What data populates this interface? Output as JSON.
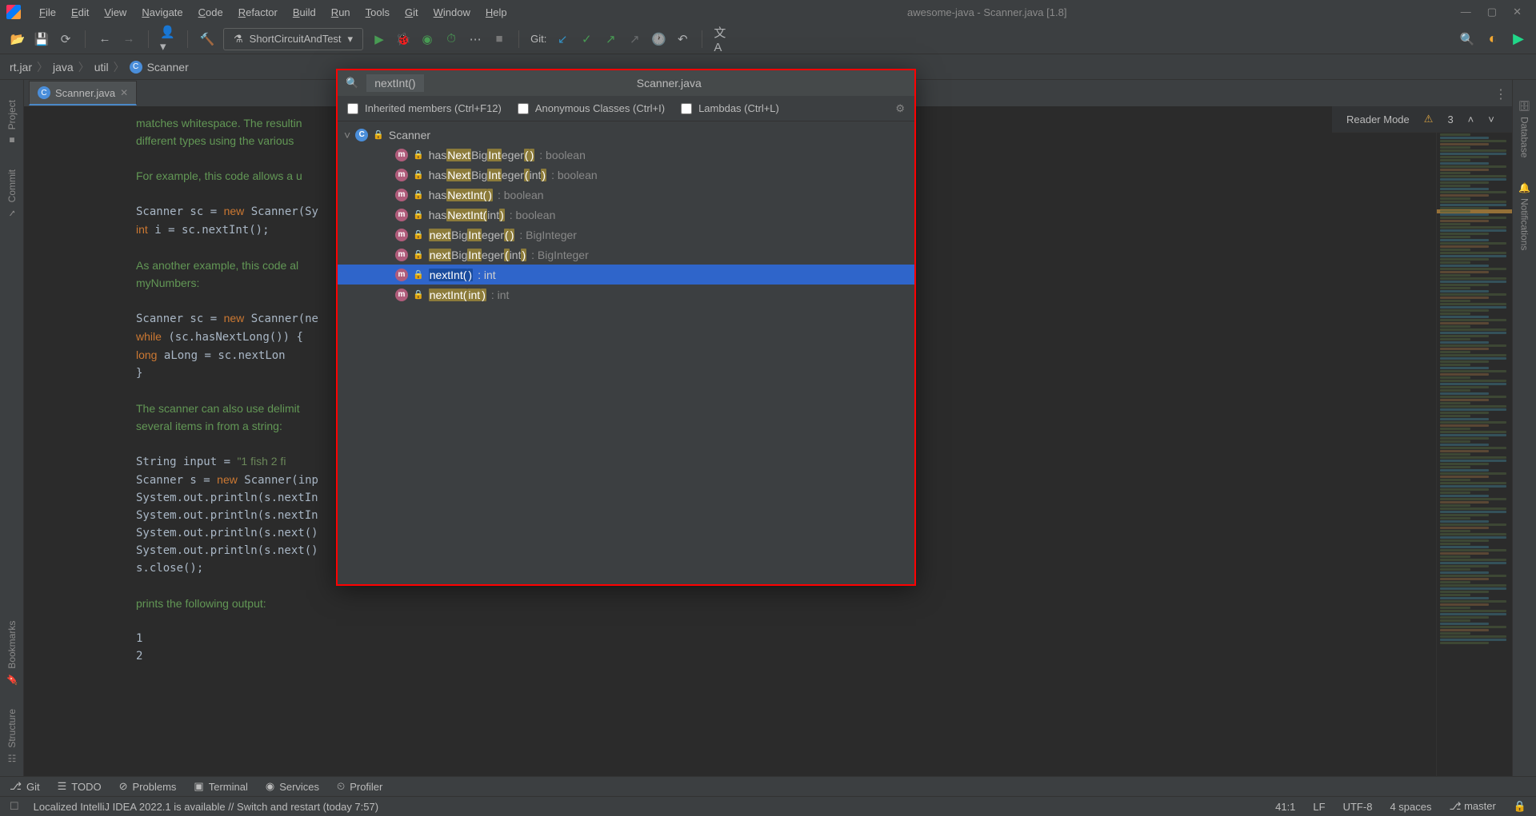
{
  "titlebar": {
    "menu": [
      "File",
      "Edit",
      "View",
      "Navigate",
      "Code",
      "Refactor",
      "Build",
      "Run",
      "Tools",
      "Git",
      "Window",
      "Help"
    ],
    "title": "awesome-java - Scanner.java [1.8]"
  },
  "toolbar": {
    "runConfig": "ShortCircuitAndTest",
    "gitLabel": "Git:"
  },
  "breadcrumb": {
    "items": [
      "rt.jar",
      "java",
      "util",
      "Scanner"
    ]
  },
  "tab": {
    "name": "Scanner.java"
  },
  "readerBar": {
    "label": "Reader Mode",
    "warnings": "3"
  },
  "editorLines": [
    {
      "cls": "doc-green",
      "text": "matches whitespace. The resultin"
    },
    {
      "cls": "doc-green",
      "text": "different types using the various"
    },
    {
      "cls": "",
      "text": ""
    },
    {
      "cls": "doc-green",
      "text": "For example, this code allows a u"
    },
    {
      "cls": "",
      "text": ""
    },
    {
      "cls": "code",
      "html": "Scanner sc = <span class='code-new'>new</span> Scanner(Sy"
    },
    {
      "cls": "code",
      "html": "<span class='code-kw'>int</span> i = sc.nextInt();"
    },
    {
      "cls": "",
      "text": ""
    },
    {
      "cls": "doc-green",
      "text": "As another example, this code al"
    },
    {
      "cls": "doc-green",
      "text": "myNumbers:"
    },
    {
      "cls": "",
      "text": ""
    },
    {
      "cls": "code",
      "html": "Scanner sc = <span class='code-new'>new</span> Scanner(ne"
    },
    {
      "cls": "code",
      "html": "<span class='code-kw'>while</span> (sc.hasNextLong()) {"
    },
    {
      "cls": "code",
      "html": "    <span class='code-kw'>long</span> aLong = sc.nextLon"
    },
    {
      "cls": "code",
      "html": "}"
    },
    {
      "cls": "",
      "text": ""
    },
    {
      "cls": "doc-green",
      "text": "The scanner can also use delimit"
    },
    {
      "cls": "doc-green",
      "text": "several items in from a string:"
    },
    {
      "cls": "",
      "text": ""
    },
    {
      "cls": "code",
      "html": "String input = <span class='code-str'>\"1 fish 2 fi</span>"
    },
    {
      "cls": "code",
      "html": "Scanner s = <span class='code-new'>new</span> Scanner(inp"
    },
    {
      "cls": "code",
      "html": "System.out.println(s.nextIn"
    },
    {
      "cls": "code",
      "html": "System.out.println(s.nextIn"
    },
    {
      "cls": "code",
      "html": "System.out.println(s.next()"
    },
    {
      "cls": "code",
      "html": "System.out.println(s.next()"
    },
    {
      "cls": "code",
      "html": "s.close();"
    },
    {
      "cls": "",
      "text": ""
    },
    {
      "cls": "doc-green",
      "text": "prints the following output:"
    },
    {
      "cls": "",
      "text": ""
    },
    {
      "cls": "code",
      "html": "1"
    },
    {
      "cls": "code",
      "html": "2"
    }
  ],
  "popup": {
    "query": "nextInt()",
    "title": "Scanner.java",
    "opts": {
      "inherited": "Inherited members (Ctrl+F12)",
      "anon": "Anonymous Classes (Ctrl+I)",
      "lambdas": "Lambdas (Ctrl+L)"
    },
    "root": "Scanner",
    "items": [
      {
        "selected": false,
        "parts": [
          "has",
          [
            "Next"
          ],
          "Big",
          [
            "Int"
          ],
          "eger",
          [
            "("
          ],
          [
            ")"
          ]
        ],
        "ret": ": boolean"
      },
      {
        "selected": false,
        "parts": [
          "has",
          [
            "Next"
          ],
          "Big",
          [
            "Int"
          ],
          "eger",
          [
            "("
          ],
          "int",
          [
            ")"
          ]
        ],
        "ret": ": boolean"
      },
      {
        "selected": false,
        "parts": [
          "has",
          [
            "NextInt("
          ],
          [
            ")"
          ]
        ],
        "ret": ": boolean"
      },
      {
        "selected": false,
        "parts": [
          "has",
          [
            "NextInt("
          ],
          "int",
          [
            ")"
          ]
        ],
        "ret": ": boolean"
      },
      {
        "selected": false,
        "parts": [
          [
            "next"
          ],
          "Big",
          [
            "Int"
          ],
          "eger",
          [
            "("
          ],
          [
            ")"
          ]
        ],
        "ret": ": BigInteger"
      },
      {
        "selected": false,
        "parts": [
          [
            "next"
          ],
          "Big",
          [
            "Int"
          ],
          "eger",
          [
            "("
          ],
          "int",
          [
            ")"
          ]
        ],
        "ret": ": BigInteger"
      },
      {
        "selected": true,
        "parts": [
          [
            "nextInt("
          ],
          [
            ")"
          ]
        ],
        "ret": ": int"
      },
      {
        "selected": false,
        "parts": [
          [
            "nextInt("
          ],
          [
            "int"
          ],
          [
            ")"
          ]
        ],
        "ret": ": int"
      }
    ]
  },
  "bottomTools": [
    "Git",
    "TODO",
    "Problems",
    "Terminal",
    "Services",
    "Profiler"
  ],
  "statusbar": {
    "msg": "Localized IntelliJ IDEA 2022.1 is available // Switch and restart (today 7:57)",
    "pos": "41:1",
    "le": "LF",
    "enc": "UTF-8",
    "indent": "4 spaces",
    "branch": "master"
  },
  "leftRail": [
    "Project",
    "Commit",
    "Bookmarks",
    "Structure"
  ],
  "rightRail": [
    "Database",
    "Notifications"
  ]
}
